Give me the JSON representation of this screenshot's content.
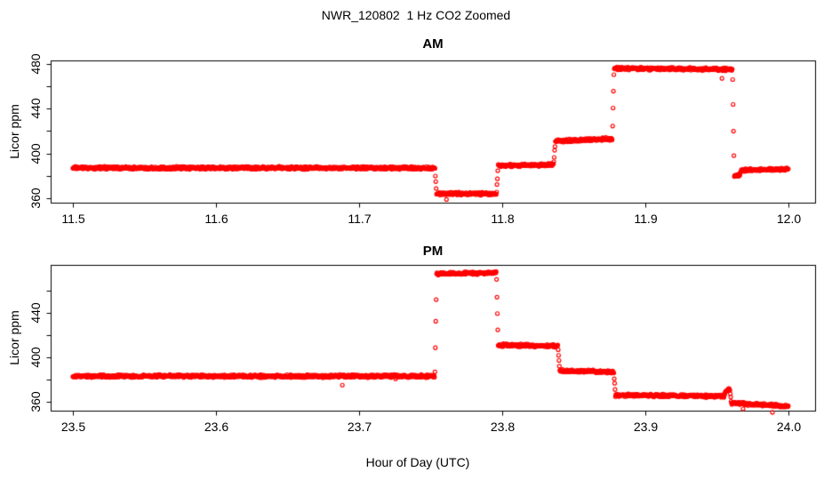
{
  "title": "NWR_120802  1 Hz CO2 Zoomed",
  "x_axis_label": "Hour of Day (UTC)",
  "accent_color": "#FF0000",
  "chart_data": [
    {
      "type": "scatter",
      "title": "AM",
      "ylabel": "Licor ppm",
      "marker": "open-circle",
      "series_color": "#FF0000",
      "sample_rate_hz": 1,
      "x_start": 11.5,
      "x_end": 12.0,
      "xlim": [
        11.4845,
        12.0187
      ],
      "ylim": [
        356,
        483
      ],
      "x_ticks": [
        "11.5",
        "11.6",
        "11.7",
        "11.8",
        "11.9",
        "12.0"
      ],
      "y_ticks_labeled": [
        360,
        400,
        440,
        480
      ],
      "y_ticks_all": [
        360,
        380,
        400,
        420,
        440,
        460,
        480
      ],
      "grid": false,
      "legend": false,
      "segments": [
        {
          "t0": 11.5,
          "t1": 11.753,
          "v0": 387,
          "v1": 387
        },
        {
          "t0": 11.753,
          "t1": 11.796,
          "v0": 364,
          "v1": 364
        },
        {
          "t0": 11.796,
          "t1": 11.836,
          "v0": 389,
          "v1": 390
        },
        {
          "t0": 11.836,
          "t1": 11.877,
          "v0": 411,
          "v1": 413
        },
        {
          "t0": 11.877,
          "t1": 11.961,
          "v0": 476,
          "v1": 475
        },
        {
          "t0": 11.961,
          "t1": 11.966,
          "v0": 379,
          "v1": 381
        },
        {
          "t0": 11.966,
          "t1": 12.0,
          "v0": 385,
          "v1": 386
        }
      ]
    },
    {
      "type": "scatter",
      "title": "PM",
      "ylabel": "Licor ppm",
      "marker": "open-circle",
      "series_color": "#FF0000",
      "sample_rate_hz": 1,
      "x_start": 23.5,
      "x_end": 24.0,
      "xlim": [
        23.4845,
        24.0187
      ],
      "ylim": [
        352,
        483
      ],
      "x_ticks": [
        "23.5",
        "23.6",
        "23.7",
        "23.8",
        "23.9",
        "24.0"
      ],
      "y_ticks_labeled": [
        360,
        400,
        440
      ],
      "y_ticks_all": [
        360,
        380,
        400,
        420,
        440,
        460
      ],
      "grid": false,
      "legend": false,
      "segments": [
        {
          "t0": 23.5,
          "t1": 23.753,
          "v0": 383,
          "v1": 383
        },
        {
          "t0": 23.753,
          "t1": 23.796,
          "v0": 475,
          "v1": 476
        },
        {
          "t0": 23.796,
          "t1": 23.839,
          "v0": 411,
          "v1": 410
        },
        {
          "t0": 23.839,
          "t1": 23.878,
          "v0": 388,
          "v1": 387
        },
        {
          "t0": 23.878,
          "t1": 23.955,
          "v0": 366,
          "v1": 365
        },
        {
          "t0": 23.955,
          "t1": 23.959,
          "v0": 369,
          "v1": 372
        },
        {
          "t0": 23.959,
          "t1": 24.0,
          "v0": 359,
          "v1": 356
        }
      ]
    }
  ]
}
